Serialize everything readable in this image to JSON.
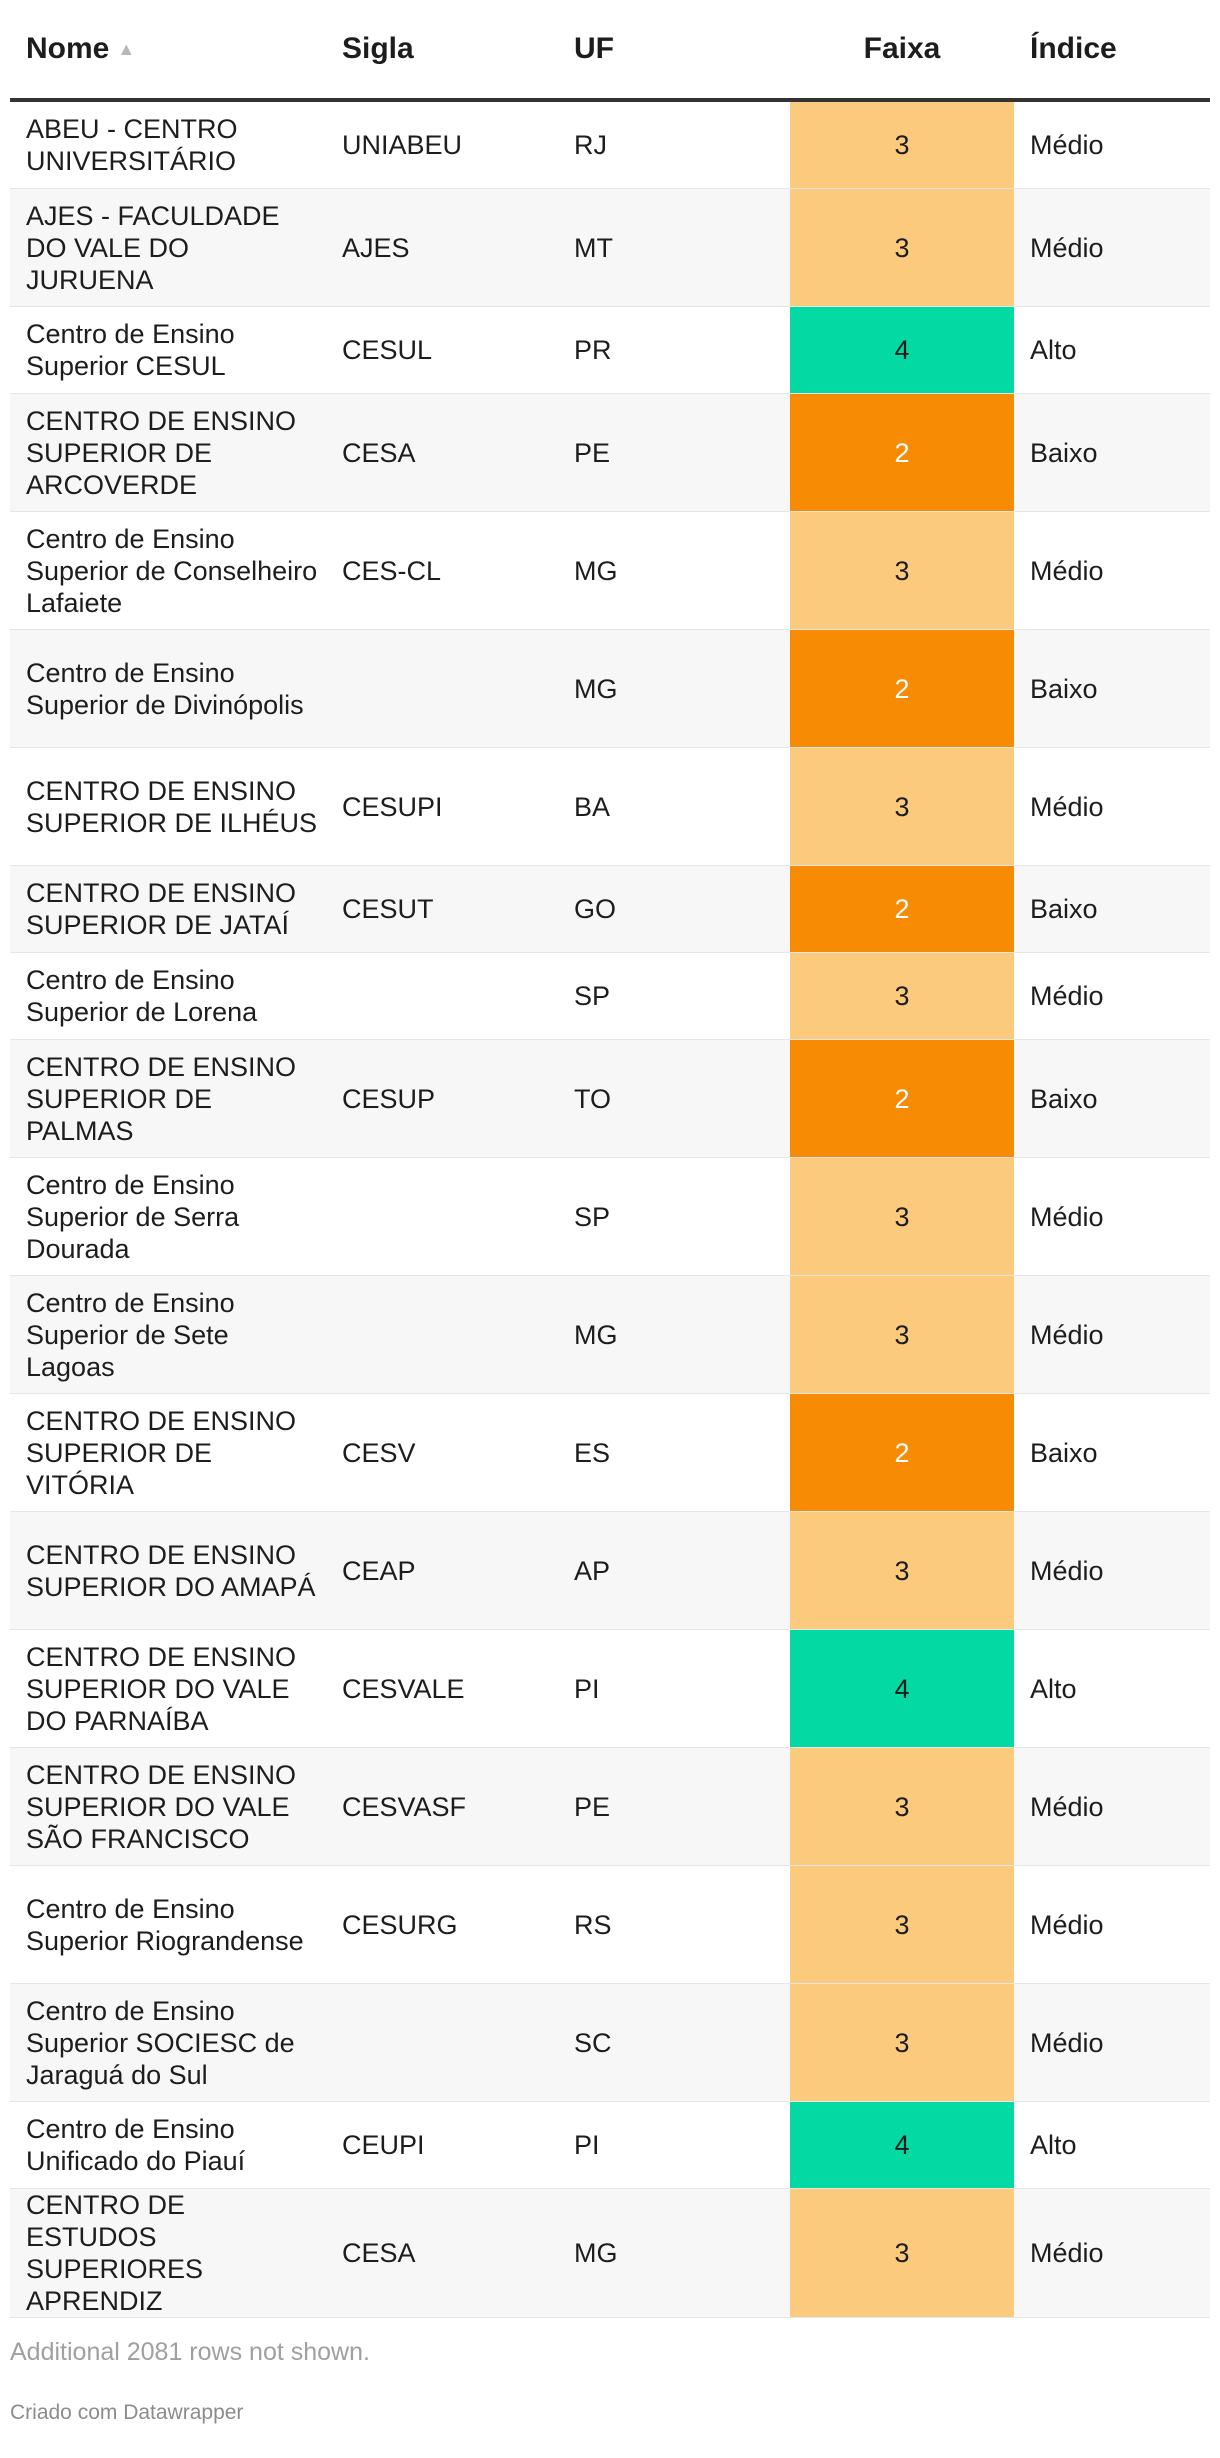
{
  "chart_data": {
    "type": "table",
    "columns": [
      {
        "key": "nome",
        "label": "Nome",
        "sort": "ascending"
      },
      {
        "key": "sigla",
        "label": "Sigla"
      },
      {
        "key": "uf",
        "label": "UF"
      },
      {
        "key": "faixa",
        "label": "Faixa"
      },
      {
        "key": "indice",
        "label": "Índice"
      }
    ],
    "rows": [
      {
        "nome": "ABEU - CENTRO UNIVERSITÁRIO",
        "sigla": "UNIABEU",
        "uf": "RJ",
        "faixa": 3,
        "indice": "Médio"
      },
      {
        "nome": "AJES - FACULDADE DO VALE DO JURUENA",
        "sigla": "AJES",
        "uf": "MT",
        "faixa": 3,
        "indice": "Médio"
      },
      {
        "nome": "Centro de Ensino Superior CESUL",
        "sigla": "CESUL",
        "uf": "PR",
        "faixa": 4,
        "indice": "Alto"
      },
      {
        "nome": "CENTRO DE ENSINO SUPERIOR DE ARCOVERDE",
        "sigla": "CESA",
        "uf": "PE",
        "faixa": 2,
        "indice": "Baixo"
      },
      {
        "nome": "Centro de Ensino Superior de Conselheiro Lafaiete",
        "sigla": "CES-CL",
        "uf": "MG",
        "faixa": 3,
        "indice": "Médio"
      },
      {
        "nome": "Centro de Ensino Superior de Divinópolis",
        "sigla": "",
        "uf": "MG",
        "faixa": 2,
        "indice": "Baixo"
      },
      {
        "nome": "CENTRO DE ENSINO SUPERIOR DE ILHÉUS",
        "sigla": "CESUPI",
        "uf": "BA",
        "faixa": 3,
        "indice": "Médio"
      },
      {
        "nome": "CENTRO DE ENSINO SUPERIOR DE JATAÍ",
        "sigla": "CESUT",
        "uf": "GO",
        "faixa": 2,
        "indice": "Baixo"
      },
      {
        "nome": "Centro de Ensino Superior de Lorena",
        "sigla": "",
        "uf": "SP",
        "faixa": 3,
        "indice": "Médio"
      },
      {
        "nome": "CENTRO DE ENSINO SUPERIOR DE PALMAS",
        "sigla": "CESUP",
        "uf": "TO",
        "faixa": 2,
        "indice": "Baixo"
      },
      {
        "nome": "Centro de Ensino Superior de Serra Dourada",
        "sigla": "",
        "uf": "SP",
        "faixa": 3,
        "indice": "Médio"
      },
      {
        "nome": "Centro de Ensino Superior de Sete Lagoas",
        "sigla": "",
        "uf": "MG",
        "faixa": 3,
        "indice": "Médio"
      },
      {
        "nome": "CENTRO DE ENSINO SUPERIOR DE VITÓRIA",
        "sigla": "CESV",
        "uf": "ES",
        "faixa": 2,
        "indice": "Baixo"
      },
      {
        "nome": "CENTRO DE ENSINO SUPERIOR DO AMAPÁ",
        "sigla": "CEAP",
        "uf": "AP",
        "faixa": 3,
        "indice": "Médio"
      },
      {
        "nome": "CENTRO DE ENSINO SUPERIOR DO VALE DO PARNAÍBA",
        "sigla": "CESVALE",
        "uf": "PI",
        "faixa": 4,
        "indice": "Alto"
      },
      {
        "nome": "CENTRO DE ENSINO SUPERIOR DO VALE SÃO FRANCISCO",
        "sigla": "CESVASF",
        "uf": "PE",
        "faixa": 3,
        "indice": "Médio"
      },
      {
        "nome": "Centro de Ensino Superior Riograndense",
        "sigla": "CESURG",
        "uf": "RS",
        "faixa": 3,
        "indice": "Médio"
      },
      {
        "nome": "Centro de Ensino Superior SOCIESC de Jaraguá do Sul",
        "sigla": "",
        "uf": "SC",
        "faixa": 3,
        "indice": "Médio"
      },
      {
        "nome": "Centro de Ensino Unificado do Piauí",
        "sigla": "CEUPI",
        "uf": "PI",
        "faixa": 4,
        "indice": "Alto"
      },
      {
        "nome": "CENTRO DE ESTUDOS SUPERIORES APRENDIZ",
        "sigla": "CESA",
        "uf": "MG",
        "faixa": 3,
        "indice": "Médio"
      }
    ],
    "faixa_colors": {
      "2": "#f78b03",
      "3": "#fcca7c",
      "4": "#02d9a3"
    },
    "notes": "Additional 2081 rows not shown."
  },
  "footer": {
    "credit": "Criado com Datawrapper"
  },
  "layout_rows": [
    2,
    3,
    2,
    3,
    3,
    3,
    3,
    2,
    2,
    3,
    3,
    3,
    3,
    3,
    3,
    3,
    3,
    3,
    2,
    4
  ]
}
